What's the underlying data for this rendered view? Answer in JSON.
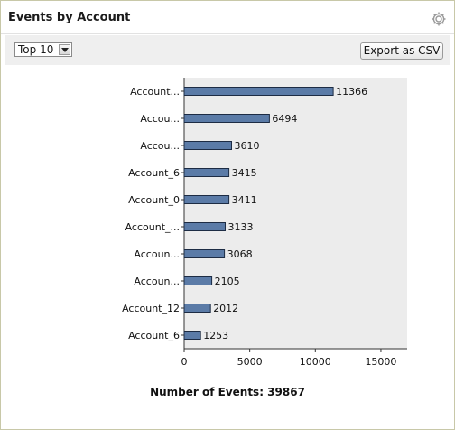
{
  "panel": {
    "title": "Events by Account",
    "settings_icon": "gear-icon"
  },
  "toolbar": {
    "top_select_value": "Top 10",
    "export_label": "Export as CSV"
  },
  "footer": {
    "total_label": "Number of Events: 39867"
  },
  "colors": {
    "bar_fill": "#5b7ba7",
    "plot_background": "#ececec"
  },
  "chart_data": {
    "type": "bar",
    "orientation": "horizontal",
    "categories": [
      "Account...",
      "Accou...",
      "Accou...",
      "Account_6",
      "Account_0",
      "Account_...",
      "Accoun...",
      "Accoun...",
      "Account_12",
      "Account_6"
    ],
    "values": [
      11366,
      6494,
      3610,
      3415,
      3411,
      3133,
      3068,
      2105,
      2012,
      1253
    ],
    "value_labels": [
      "11366",
      "6494",
      "3610",
      "3415",
      "3411",
      "3133",
      "3068",
      "2105",
      "2012",
      "1253"
    ],
    "xticks": [
      "0",
      "5000",
      "10000",
      "15000"
    ],
    "xtick_values": [
      0,
      5000,
      10000,
      15000
    ],
    "xlim": [
      0,
      17000
    ],
    "grid": false
  }
}
